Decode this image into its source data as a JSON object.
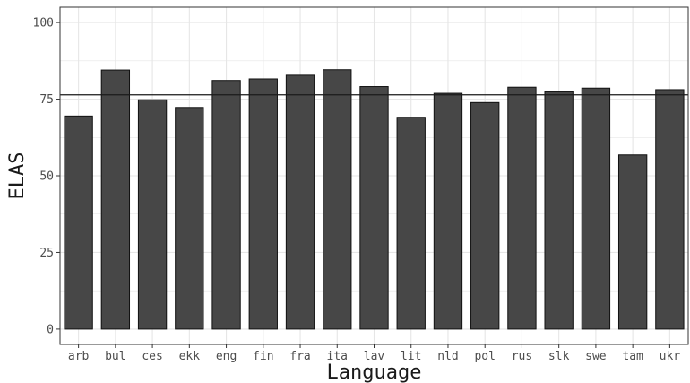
{
  "chart_data": {
    "type": "bar",
    "xlabel": "Language",
    "ylabel": "ELAS",
    "categories": [
      "arb",
      "bul",
      "ces",
      "ekk",
      "eng",
      "fin",
      "fra",
      "ita",
      "lav",
      "lit",
      "nld",
      "pol",
      "rus",
      "slk",
      "swe",
      "tam",
      "ukr"
    ],
    "values": [
      69.5,
      84.5,
      74.8,
      72.3,
      81.1,
      81.6,
      82.8,
      84.6,
      79.1,
      69.1,
      76.9,
      73.9,
      78.9,
      77.4,
      78.6,
      56.8,
      78.1
    ],
    "reference_line": 76.4,
    "ylim": [
      -5,
      105
    ],
    "yticks": [
      0,
      25,
      50,
      75,
      100
    ],
    "grid": true,
    "colors": {
      "bar_fill": "#474747",
      "bar_stroke": "#111111",
      "grid": "#e6e6e6",
      "panel_border": "#333333",
      "reference_line": "#1a1a1a"
    }
  }
}
